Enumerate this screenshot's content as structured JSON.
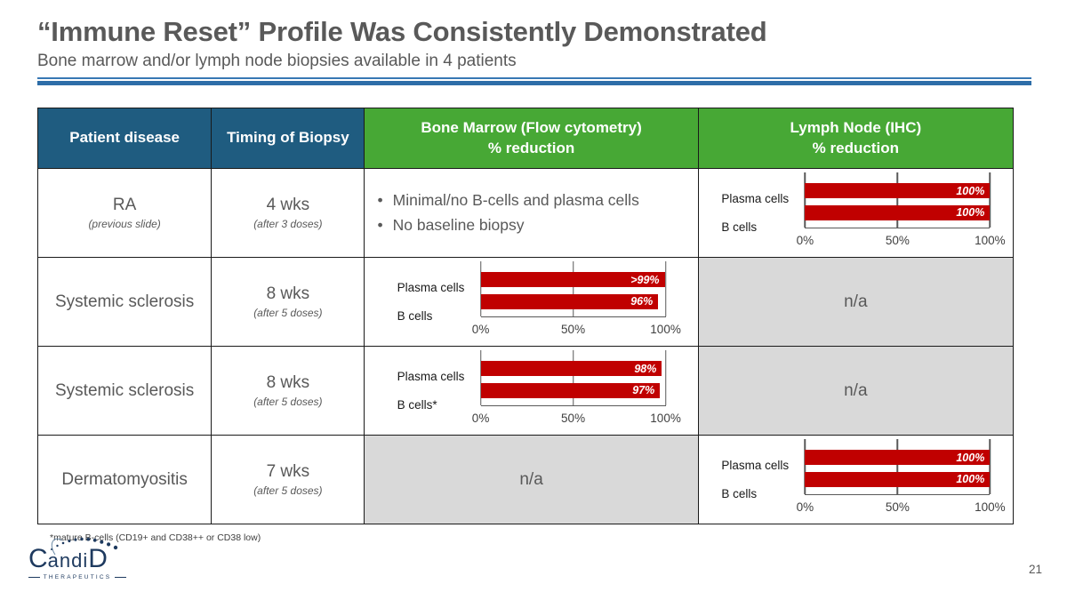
{
  "slide": {
    "title": "“Immune Reset” Profile Was Consistently Demonstrated",
    "subtitle": "Bone marrow and/or lymph node biopsies available in 4 patients",
    "footnote": "*mature B-cells (CD19+ and CD38++ or CD38 low)",
    "page_number": "21"
  },
  "logo": {
    "letter_c": "C",
    "letters_mid": "andi",
    "letter_d": "D",
    "subtext": "THERAPEUTICS"
  },
  "colors": {
    "header_blue": "#1F5C80",
    "header_green": "#47A835",
    "bar_red": "#C00000",
    "na_bg": "#D9D9D9",
    "rule_thin": "#3878B4",
    "rule_thick": "#2D6DA8",
    "text_gray": "#595959"
  },
  "table": {
    "na_label": "n/a",
    "headers": [
      {
        "line1": "Patient disease",
        "line2": "",
        "theme": "blue"
      },
      {
        "line1": "Timing of Biopsy",
        "line2": "",
        "theme": "blue"
      },
      {
        "line1": "Bone Marrow (Flow cytometry)",
        "line2": "% reduction",
        "theme": "green"
      },
      {
        "line1": "Lymph Node (IHC)",
        "line2": "% reduction",
        "theme": "green"
      }
    ],
    "rows": [
      {
        "disease": "RA",
        "disease_note": "(previous slide)",
        "timing": "4 wks",
        "timing_note": "(after 3 doses)",
        "bone_marrow": {
          "type": "bullets",
          "items": [
            "Minimal/no B-cells and plasma cells",
            "No baseline biopsy"
          ]
        },
        "lymph_node": {
          "type": "chart",
          "chart_index": 0
        }
      },
      {
        "disease": "Systemic sclerosis",
        "disease_note": "",
        "timing": "8 wks",
        "timing_note": "(after 5 doses)",
        "bone_marrow": {
          "type": "chart",
          "chart_index": 1
        },
        "lymph_node": {
          "type": "na"
        }
      },
      {
        "disease": "Systemic sclerosis",
        "disease_note": "",
        "timing": "8 wks",
        "timing_note": "(after 5 doses)",
        "bone_marrow": {
          "type": "chart",
          "chart_index": 2
        },
        "lymph_node": {
          "type": "na"
        }
      },
      {
        "disease": "Dermatomyositis",
        "disease_note": "",
        "timing": "7 wks",
        "timing_note": "(after 5 doses)",
        "bone_marrow": {
          "type": "na"
        },
        "lymph_node": {
          "type": "chart",
          "chart_index": 3
        }
      }
    ]
  },
  "chart_data": [
    {
      "type": "bar",
      "orientation": "horizontal",
      "context": "RA — Lymph Node (IHC) % reduction",
      "categories": [
        "Plasma cells",
        "B cells"
      ],
      "values": [
        100,
        100
      ],
      "value_labels": [
        "100%",
        "100%"
      ],
      "xlim": [
        0,
        100
      ],
      "x_ticks": [
        "0%",
        "50%",
        "100%"
      ],
      "bar_color": "#C00000",
      "grid": "vertical lines at 0/50/100",
      "legend": "none"
    },
    {
      "type": "bar",
      "orientation": "horizontal",
      "context": "Systemic sclerosis (row 2) — Bone Marrow (Flow cytometry) % reduction",
      "categories": [
        "Plasma cells",
        "B cells"
      ],
      "values": [
        99.5,
        96
      ],
      "value_labels": [
        ">99%",
        "96%"
      ],
      "xlim": [
        0,
        100
      ],
      "x_ticks": [
        "0%",
        "50%",
        "100%"
      ],
      "bar_color": "#C00000",
      "grid": "vertical lines at 0/50/100",
      "legend": "none"
    },
    {
      "type": "bar",
      "orientation": "horizontal",
      "context": "Systemic sclerosis (row 3) — Bone Marrow (Flow cytometry) % reduction",
      "categories": [
        "Plasma cells",
        "B cells*"
      ],
      "values": [
        98,
        97
      ],
      "value_labels": [
        "98%",
        "97%"
      ],
      "xlim": [
        0,
        100
      ],
      "x_ticks": [
        "0%",
        "50%",
        "100%"
      ],
      "bar_color": "#C00000",
      "grid": "vertical lines at 0/50/100",
      "legend": "none"
    },
    {
      "type": "bar",
      "orientation": "horizontal",
      "context": "Dermatomyositis — Lymph Node (IHC) % reduction",
      "categories": [
        "Plasma cells",
        "B cells"
      ],
      "values": [
        100,
        100
      ],
      "value_labels": [
        "100%",
        "100%"
      ],
      "xlim": [
        0,
        100
      ],
      "x_ticks": [
        "0%",
        "50%",
        "100%"
      ],
      "bar_color": "#C00000",
      "grid": "vertical lines at 0/50/100",
      "legend": "none"
    }
  ]
}
